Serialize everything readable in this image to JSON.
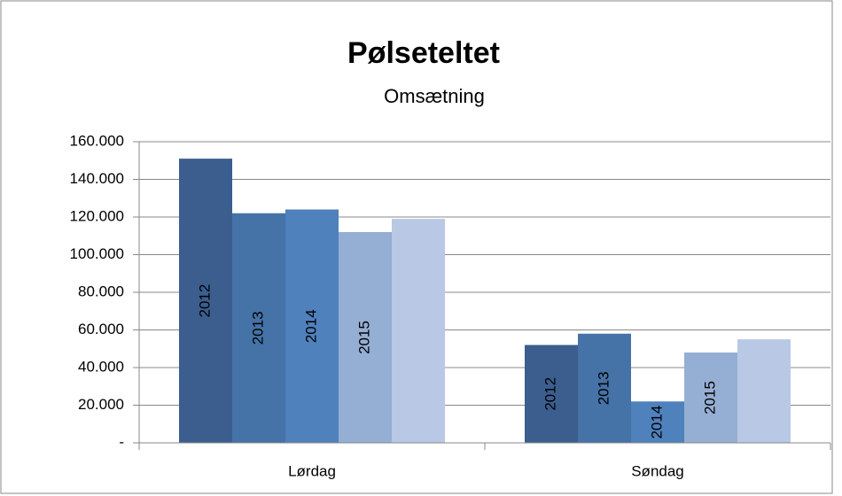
{
  "chart_data": {
    "type": "bar",
    "title": "Pølseteltet",
    "subtitle": "Omsætning",
    "categories": [
      "Lørdag",
      "Søndag"
    ],
    "series": [
      {
        "name": "2012",
        "color": "#3b5e8f",
        "values": [
          151000,
          52000
        ]
      },
      {
        "name": "2013",
        "color": "#4572a7",
        "values": [
          122000,
          58000
        ]
      },
      {
        "name": "2014",
        "color": "#4f81bd",
        "values": [
          124000,
          22000
        ]
      },
      {
        "name": "2015",
        "color": "#95aed4",
        "values": [
          112000,
          48000
        ]
      },
      {
        "color": "#b9c8e4",
        "values": [
          119000,
          55000
        ]
      }
    ],
    "ylim": [
      0,
      160000
    ],
    "yticks": [
      {
        "value": 0,
        "label": "-"
      },
      {
        "value": 20000,
        "label": "20.000"
      },
      {
        "value": 40000,
        "label": "40.000"
      },
      {
        "value": 60000,
        "label": "60.000"
      },
      {
        "value": 80000,
        "label": "80.000"
      },
      {
        "value": 100000,
        "label": "100.000"
      },
      {
        "value": 120000,
        "label": "120.000"
      },
      {
        "value": 140000,
        "label": "140.000"
      },
      {
        "value": 160000,
        "label": "160.000"
      }
    ],
    "grid": true
  }
}
